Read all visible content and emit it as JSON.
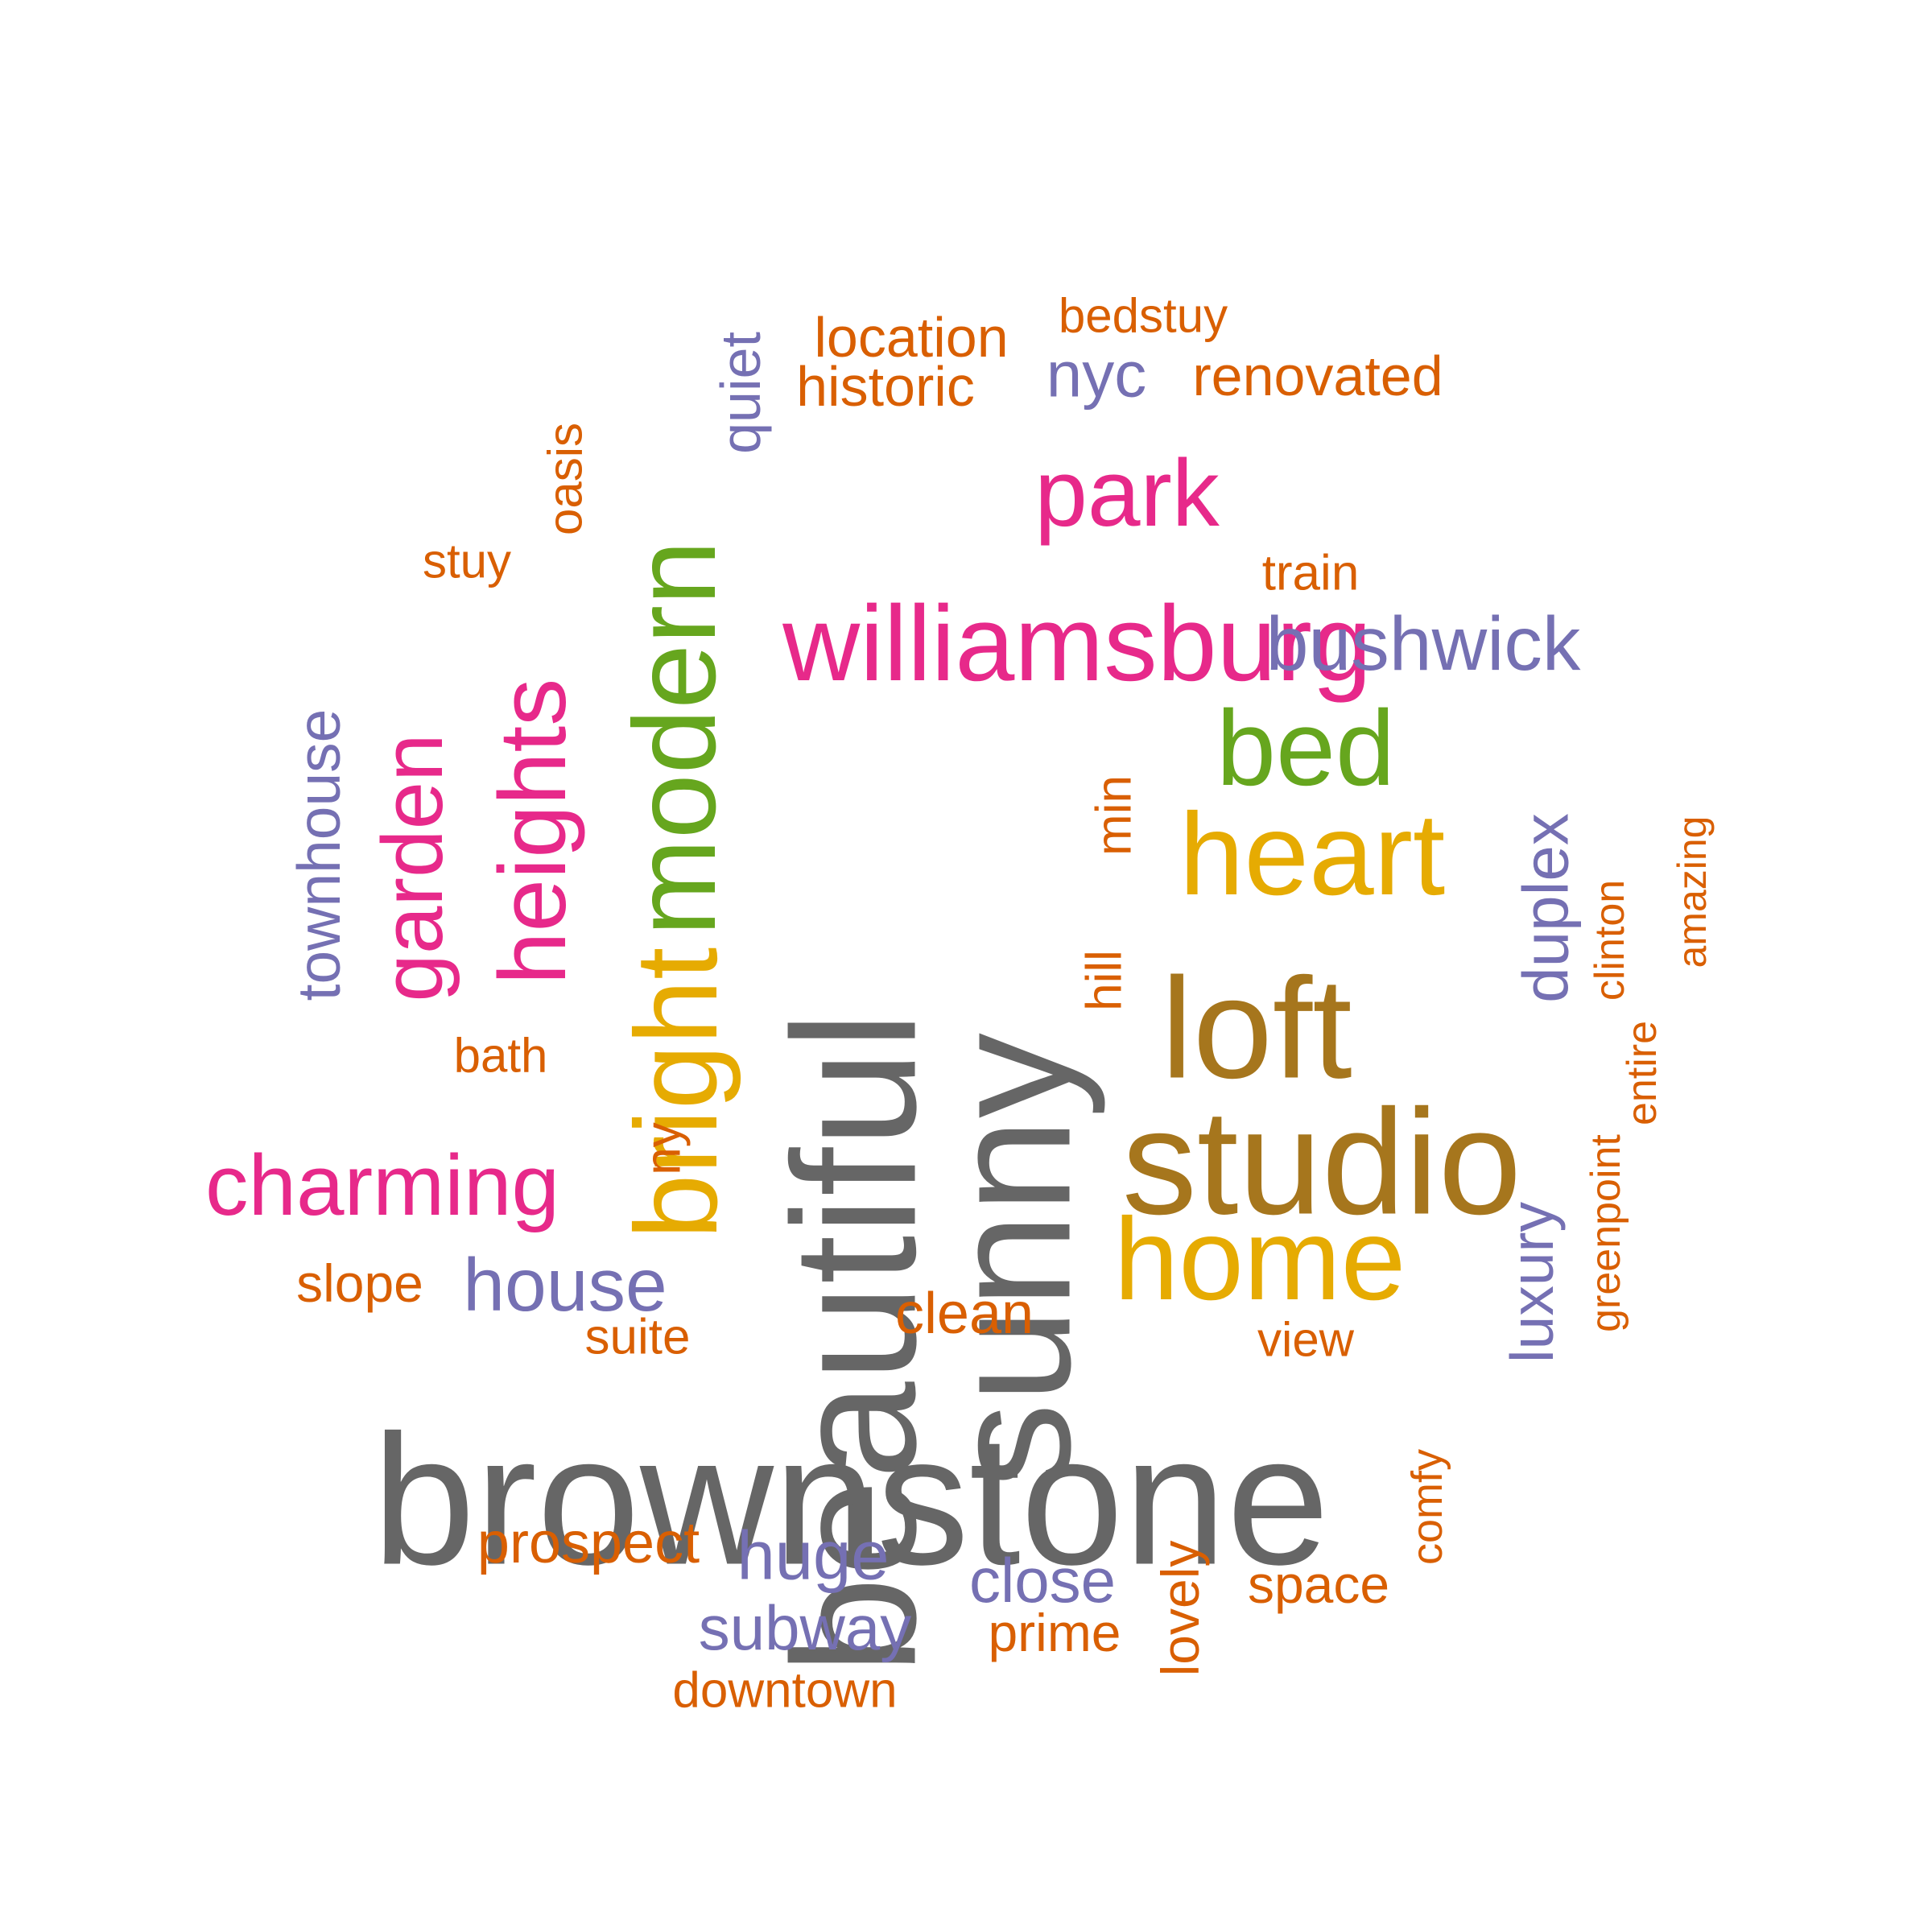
{
  "colors": {
    "gray": "#666666",
    "pink": "#e7298a",
    "gold": "#e6ab02",
    "bronze": "#a6761d",
    "green": "#66a61e",
    "purple": "#7570b3",
    "orange": "#d95f02"
  },
  "words": [
    {
      "text": "brownstone",
      "color": "gray"
    },
    {
      "text": "beautiful",
      "color": "gray"
    },
    {
      "text": "sunny",
      "color": "gray"
    },
    {
      "text": "studio",
      "color": "bronze"
    },
    {
      "text": "loft",
      "color": "bronze"
    },
    {
      "text": "home",
      "color": "gold"
    },
    {
      "text": "heart",
      "color": "gold"
    },
    {
      "text": "bright",
      "color": "gold"
    },
    {
      "text": "modern",
      "color": "green"
    },
    {
      "text": "bed",
      "color": "green"
    },
    {
      "text": "williamsburg",
      "color": "pink"
    },
    {
      "text": "park",
      "color": "pink"
    },
    {
      "text": "heights",
      "color": "pink"
    },
    {
      "text": "garden",
      "color": "pink"
    },
    {
      "text": "charming",
      "color": "pink"
    },
    {
      "text": "bushwick",
      "color": "purple"
    },
    {
      "text": "townhouse",
      "color": "purple"
    },
    {
      "text": "house",
      "color": "purple"
    },
    {
      "text": "duplex",
      "color": "purple"
    },
    {
      "text": "luxury",
      "color": "purple"
    },
    {
      "text": "huge",
      "color": "purple"
    },
    {
      "text": "close",
      "color": "purple"
    },
    {
      "text": "subway",
      "color": "purple"
    },
    {
      "text": "nyc",
      "color": "purple"
    },
    {
      "text": "quiet",
      "color": "purple"
    },
    {
      "text": "location",
      "color": "orange"
    },
    {
      "text": "bedstuy",
      "color": "orange"
    },
    {
      "text": "historic",
      "color": "orange"
    },
    {
      "text": "renovated",
      "color": "orange"
    },
    {
      "text": "oasis",
      "color": "orange"
    },
    {
      "text": "stuy",
      "color": "orange"
    },
    {
      "text": "train",
      "color": "orange"
    },
    {
      "text": "min",
      "color": "orange"
    },
    {
      "text": "hill",
      "color": "orange"
    },
    {
      "text": "bath",
      "color": "orange"
    },
    {
      "text": "ny",
      "color": "orange"
    },
    {
      "text": "slope",
      "color": "orange"
    },
    {
      "text": "suite",
      "color": "orange"
    },
    {
      "text": "clean",
      "color": "orange"
    },
    {
      "text": "view",
      "color": "orange"
    },
    {
      "text": "clinton",
      "color": "orange"
    },
    {
      "text": "amazing",
      "color": "orange"
    },
    {
      "text": "entire",
      "color": "orange"
    },
    {
      "text": "greenpoint",
      "color": "orange"
    },
    {
      "text": "prospect",
      "color": "orange"
    },
    {
      "text": "comfy",
      "color": "orange"
    },
    {
      "text": "space",
      "color": "orange"
    },
    {
      "text": "lovely",
      "color": "orange"
    },
    {
      "text": "prime",
      "color": "orange"
    },
    {
      "text": "downtown",
      "color": "orange"
    }
  ]
}
